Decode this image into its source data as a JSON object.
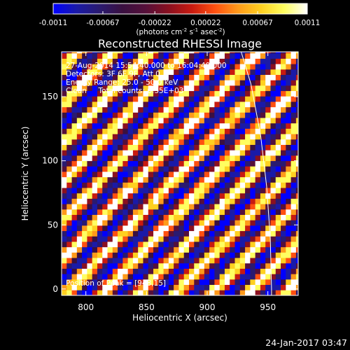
{
  "chart_data": {
    "type": "heatmap",
    "title": "Reconstructed RHESSI Image",
    "xlabel": "Heliocentric X (arcsec)",
    "ylabel": "Heliocentric Y (arcsec)",
    "xlim": [
      780,
      975
    ],
    "ylim": [
      -5,
      185
    ],
    "xticks": [
      800,
      850,
      900,
      950
    ],
    "yticks": [
      0,
      50,
      100,
      150
    ],
    "xtick_labels": [
      "800",
      "850",
      "900",
      "950"
    ],
    "ytick_labels": [
      "0",
      "50",
      "100",
      "150"
    ],
    "colorbar": {
      "min": -0.0011,
      "max": 0.0011,
      "ticks": [
        -0.0011,
        -0.00067,
        -0.00022,
        0.00022,
        0.00067,
        0.0011
      ],
      "tick_labels": [
        "-0.0011",
        "-0.00067",
        "-0.00022",
        "0.00022",
        "0.00067",
        "0.0011"
      ],
      "colors": [
        "#0000ff",
        "#1a1aa8",
        "#2a1a70",
        "#3a1040",
        "#55103a",
        "#8a1020",
        "#c81a10",
        "#ff5010",
        "#ff9a1a",
        "#ffd020",
        "#ffff60",
        "#ffffff"
      ]
    },
    "unit_label": {
      "pre": "(photons cm",
      "sup1": "-2",
      "mid1": " s",
      "sup2": "-1",
      "mid2": " asec",
      "sup3": "-2",
      "post": ")"
    },
    "annotations": [
      "27-Aug-2014 15:54:40.000 to 16:04:40.000",
      "Detectors: 3F 6F 9F, Att 0",
      "Energy Range: 25.0 - 50.0 keV",
      "Clean     Total counts: 6.35E+03"
    ],
    "peak_label": "Position of Peak = [948,15]",
    "limb_curve": [
      [
        928,
        185
      ],
      [
        936,
        160
      ],
      [
        944,
        120
      ],
      [
        949,
        80
      ],
      [
        952,
        40
      ],
      [
        953,
        0
      ],
      [
        953,
        -5
      ]
    ],
    "stripe_pattern": {
      "pixel_size_arcsec": 4.2,
      "stripe_period_arcsec": 30,
      "stripe_direction": "diagonal",
      "amplitude": 0.0011
    }
  },
  "footer": {
    "timestamp": "24-Jan-2017 03:47"
  }
}
